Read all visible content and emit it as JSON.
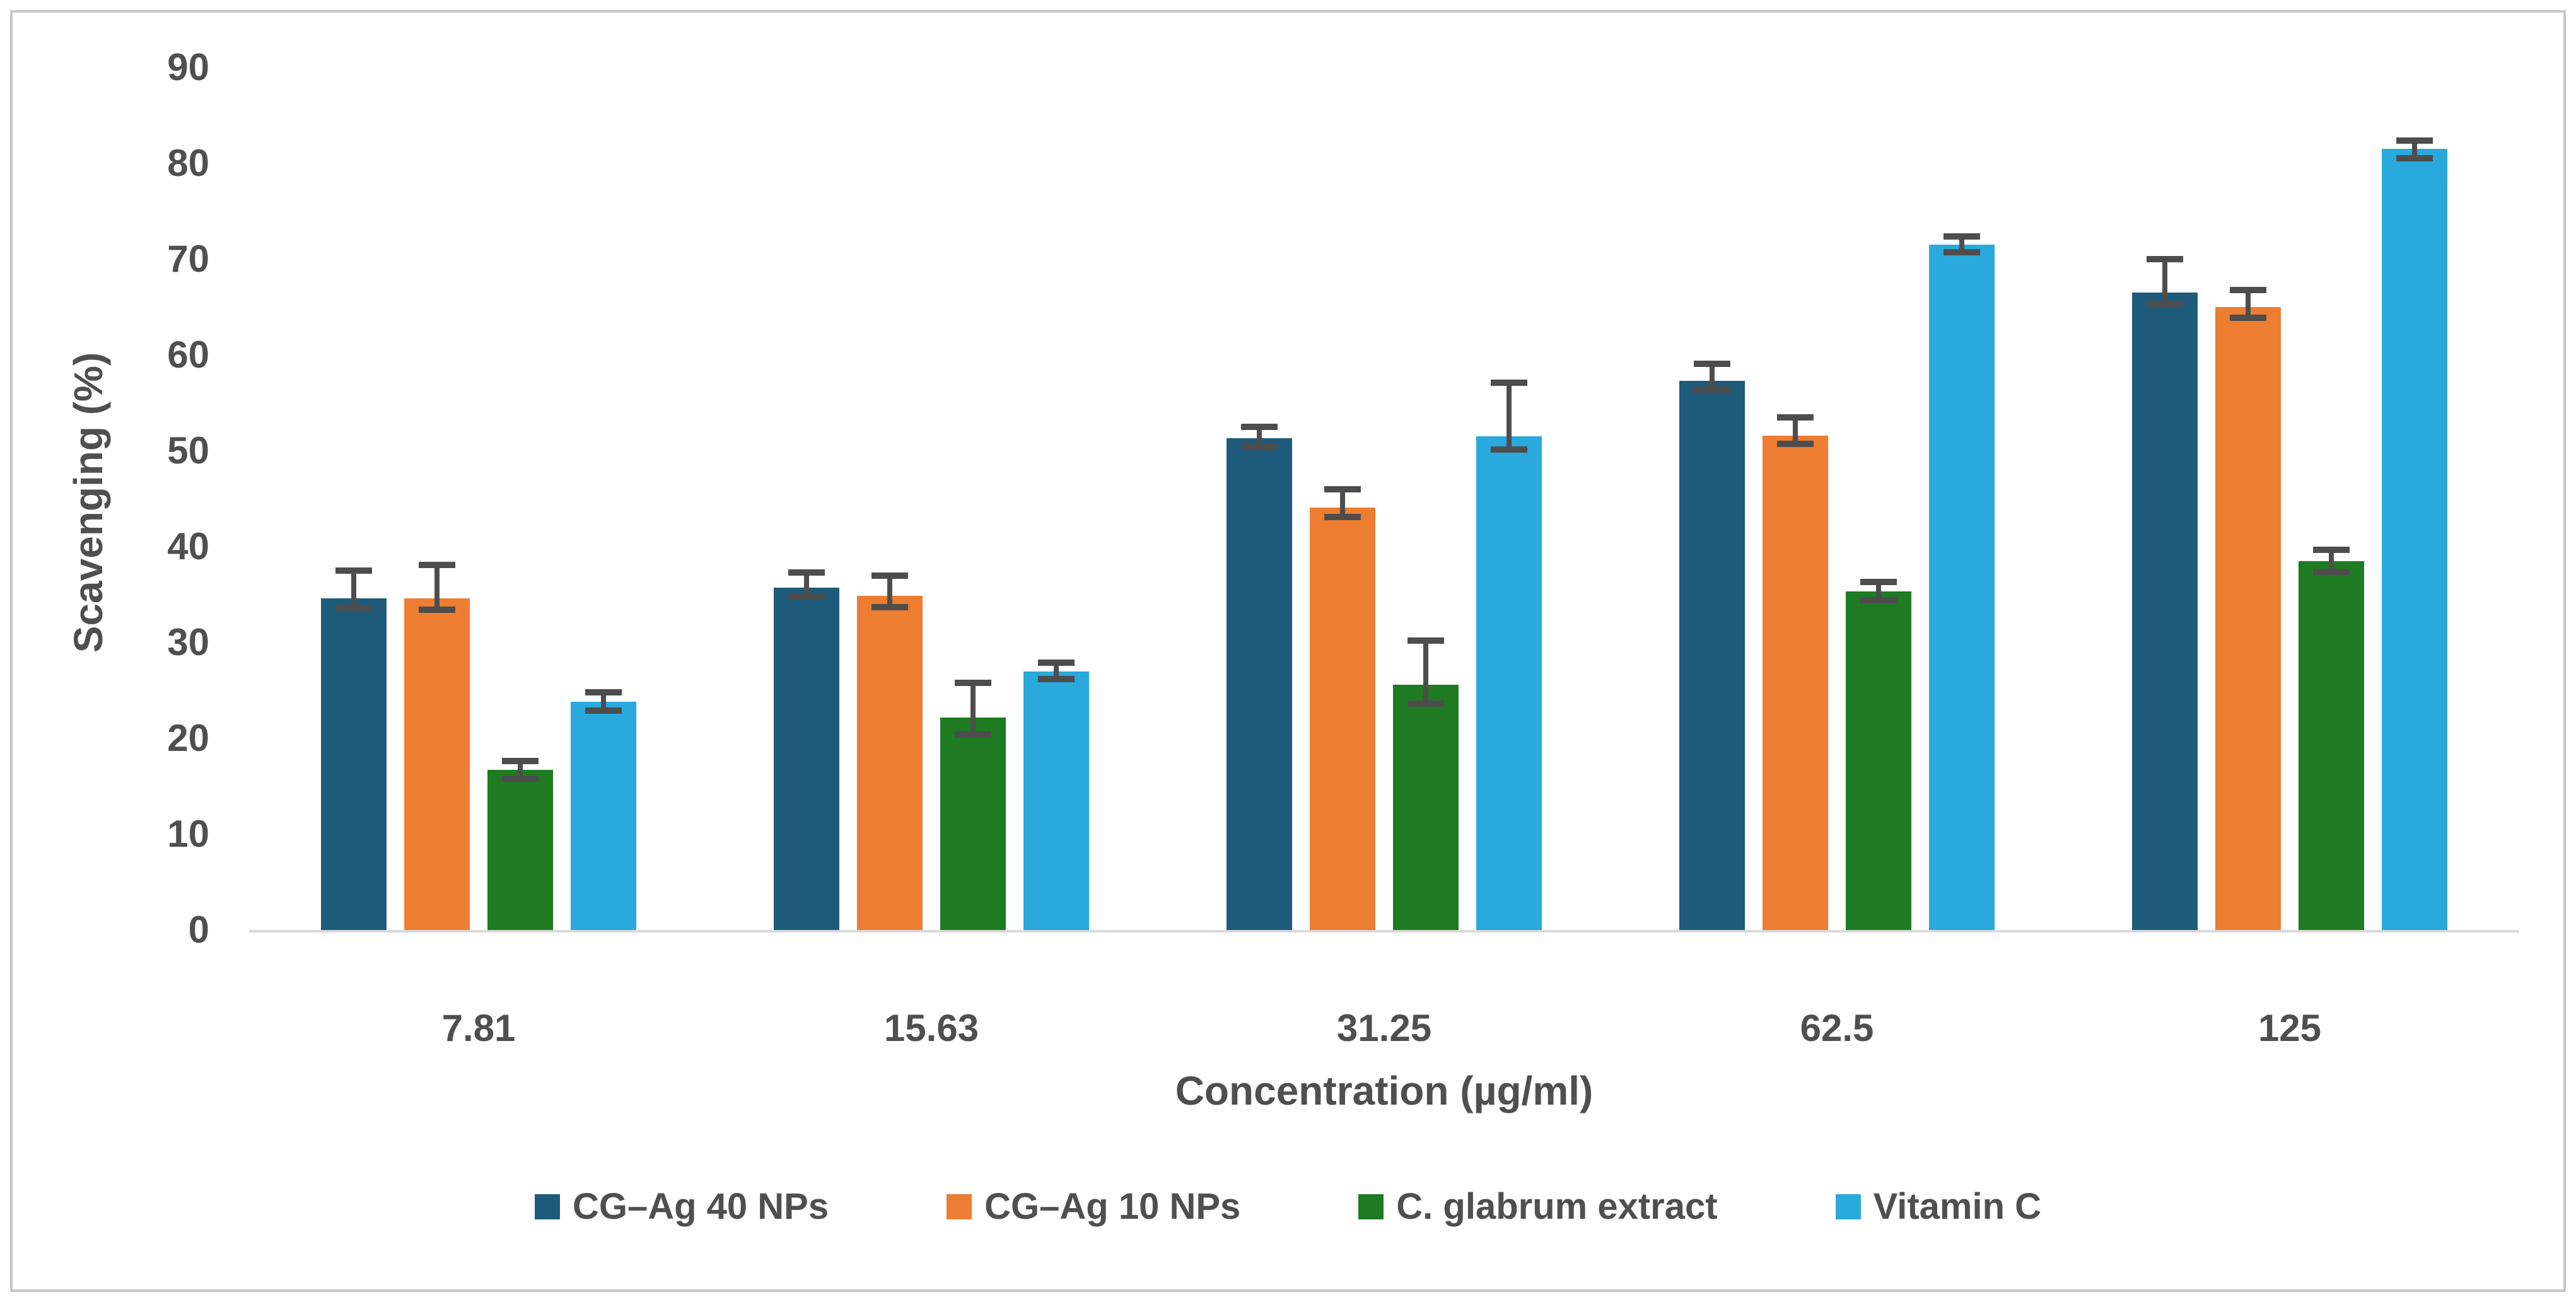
{
  "chart_data": {
    "type": "bar",
    "title": "",
    "xlabel": "Concentration (µg/ml)",
    "ylabel": "Scavenging (%)",
    "ylim": [
      0,
      90
    ],
    "ytick_step": 10,
    "yticks": [
      0,
      10,
      20,
      30,
      40,
      50,
      60,
      70,
      80,
      90
    ],
    "grid": false,
    "legend_position": "bottom",
    "categories": [
      "7.81",
      "15.63",
      "31.25",
      "62.5",
      "125"
    ],
    "series": [
      {
        "name": "CG–Ag 40 NPs",
        "color": "#1E5B7B",
        "values": [
          34.6,
          35.7,
          51.3,
          57.3,
          66.5
        ],
        "err_up": [
          2.9,
          1.6,
          1.2,
          1.8,
          3.5
        ],
        "err_down": [
          1.0,
          0.9,
          0.9,
          0.9,
          1.2
        ]
      },
      {
        "name": "CG–Ag 10 NPs",
        "color": "#ED7D31",
        "values": [
          34.6,
          34.9,
          44.1,
          51.6,
          65.0
        ],
        "err_up": [
          3.5,
          2.1,
          1.9,
          1.9,
          1.8
        ],
        "err_down": [
          1.2,
          1.2,
          1.0,
          0.9,
          1.1
        ]
      },
      {
        "name": "C. glabrum extract",
        "color": "#1E7B22",
        "values": [
          16.7,
          22.2,
          25.6,
          35.3,
          38.5
        ],
        "err_up": [
          0.9,
          3.6,
          4.6,
          1.0,
          1.2
        ],
        "err_down": [
          0.9,
          1.8,
          2.0,
          0.9,
          1.1
        ]
      },
      {
        "name": "Vitamin C",
        "color": "#29A9DC",
        "values": [
          23.8,
          27.0,
          51.5,
          71.5,
          81.5
        ],
        "err_up": [
          1.0,
          0.9,
          5.6,
          0.9,
          0.9
        ],
        "err_down": [
          0.9,
          0.8,
          1.4,
          0.8,
          1.0
        ]
      }
    ],
    "error_bar_color": "#4d4d4d",
    "axis_text_color": "#4f4f4f",
    "baseline_color": "#d9d9d9",
    "frame_border_color": "#c6c6c6"
  }
}
